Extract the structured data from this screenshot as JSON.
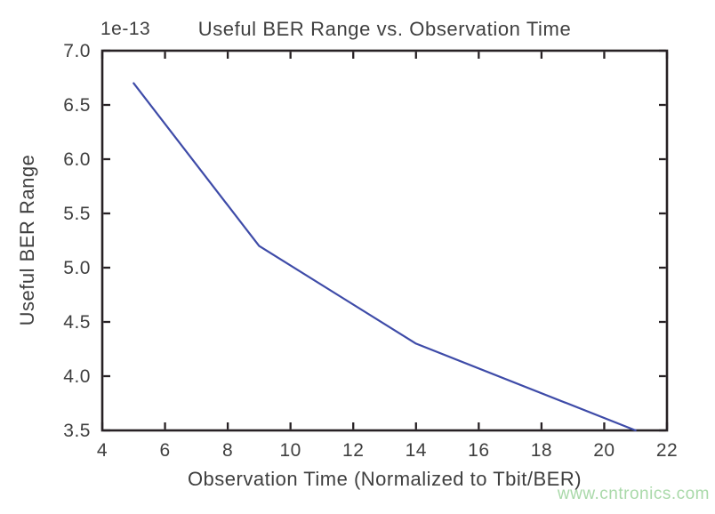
{
  "figure": {
    "background": "#ffffff",
    "watermark": {
      "text": "www.cntronics.com",
      "color": "#a9d9a9"
    }
  },
  "chart_data": {
    "type": "line",
    "title": "Useful BER Range vs. Observation Time",
    "xlabel": "Observation Time (Normalized to Tbit/BER)",
    "ylabel": "Useful BER Range",
    "y_offset_label": "1e-13",
    "x": [
      5,
      9,
      14,
      21
    ],
    "y": [
      6.7,
      5.2,
      4.3,
      3.5
    ],
    "y_scale_note": "y values are multiplied by 1e-13",
    "xlim": [
      4,
      22
    ],
    "ylim": [
      3.5,
      7.0
    ],
    "xticks": [
      4,
      6,
      8,
      10,
      12,
      14,
      16,
      18,
      20,
      22
    ],
    "yticks": [
      3.5,
      4.0,
      4.5,
      5.0,
      5.5,
      6.0,
      6.5,
      7.0
    ],
    "grid": false,
    "legend": null,
    "tick_direction": "in",
    "line_color": "#3e4ba8",
    "axis_color": "#272124",
    "text_color": "#3f3f3f"
  }
}
